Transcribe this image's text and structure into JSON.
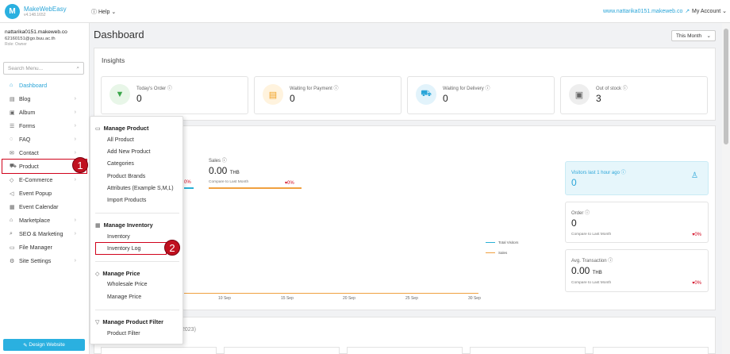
{
  "app": {
    "name": "MakeWebEasy",
    "version": "v4.148.1652"
  },
  "topbar": {
    "help": "Help",
    "site": "www.nattarika0151.makeweb.co",
    "account": "My Account"
  },
  "user": {
    "name": "nattarika0151.makeweb.co",
    "email": "62160151@go.buu.ac.th",
    "role": "Role: Owner"
  },
  "sidebar": {
    "search_placeholder": "Search Menu...",
    "items": [
      {
        "label": "Dashboard",
        "icon": "home-icon"
      },
      {
        "label": "Blog",
        "icon": "document-icon"
      },
      {
        "label": "Album",
        "icon": "image-icon"
      },
      {
        "label": "Forms",
        "icon": "list-icon"
      },
      {
        "label": "FAQ",
        "icon": "chat-icon"
      },
      {
        "label": "Contact",
        "icon": "mail-icon"
      },
      {
        "label": "Product",
        "icon": "cart-icon"
      },
      {
        "label": "E-Commerce",
        "icon": "tag-icon"
      },
      {
        "label": "Event Popup",
        "icon": "megaphone-icon"
      },
      {
        "label": "Event Calendar",
        "icon": "calendar-icon"
      },
      {
        "label": "Marketplace",
        "icon": "shop-icon"
      },
      {
        "label": "SEO & Marketing",
        "icon": "search-icon"
      },
      {
        "label": "File Manager",
        "icon": "folder-icon"
      },
      {
        "label": "Site Settings",
        "icon": "gear-icon"
      }
    ],
    "design_button": "Design Website"
  },
  "main": {
    "title": "Dashboard",
    "period": "This Month",
    "insights_title": "Insights",
    "stats": [
      {
        "label": "Today's Order",
        "value": "0",
        "color": "#e8f6e8",
        "icon_color": "#3aa64a"
      },
      {
        "label": "Waiting for Payment",
        "value": "0",
        "color": "#fff3de",
        "icon_color": "#f0a020"
      },
      {
        "label": "Waiting for Delivery",
        "value": "0",
        "color": "#e2f3fb",
        "icon_color": "#2aa5d8"
      },
      {
        "label": "Out of stock",
        "value": "3",
        "color": "#eeeeee",
        "icon_color": "#666666"
      }
    ],
    "sales": {
      "label": "Sales",
      "value": "0.00",
      "unit": "THB",
      "compare": "Compare to Last Month",
      "pct": "0%",
      "left_pct": "0%"
    },
    "chart": {
      "x_ticks": [
        "10 Sep",
        "15 Sep",
        "20 Sep",
        "25 Sep",
        "30 Sep"
      ],
      "legend": [
        "Total Visitors",
        "Sales"
      ]
    },
    "side_cards": {
      "visitors": {
        "label": "Visitors last 1 hour ago",
        "value": "0"
      },
      "order": {
        "label": "Order",
        "value": "0",
        "compare": "Compare to Last Month",
        "pct": "0%"
      },
      "avg": {
        "label": "Avg. Transaction",
        "value": "0.00",
        "unit": "THB",
        "compare": "Compare to Last Month",
        "pct": "0%"
      }
    },
    "partial_fragments": {
      "a": ")",
      "b": "2023)"
    }
  },
  "dropdown": {
    "groups": [
      {
        "title": "Manage Product",
        "items": [
          "All Product",
          "Add New Product",
          "Categories",
          "Product Brands",
          "Attributes (Example S,M,L)",
          "Import Products"
        ]
      },
      {
        "title": "Manage Inventory",
        "items": [
          "Inventory",
          "Inventory Log"
        ]
      },
      {
        "title": "Manage Price",
        "items": [
          "Wholesale Price",
          "Manage Price"
        ]
      },
      {
        "title": "Manage Product Filter",
        "items": [
          "Product Filter"
        ]
      }
    ]
  },
  "annotations": {
    "step1": "1",
    "step2": "2"
  }
}
